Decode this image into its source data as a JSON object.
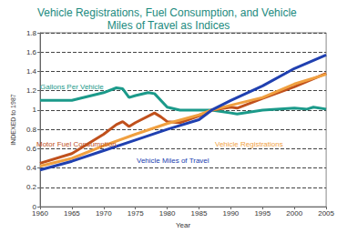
{
  "chart_data": {
    "type": "line",
    "title": "Vehicle Registrations, Fuel Consumption, and Vehicle Miles of Travel as Indices",
    "xlabel": "Year",
    "ylabel": "INDEXED to 1987",
    "series": [
      {
        "name": "Gallons Per Vehicle",
        "color": "#1b9a8a",
        "marker": "none",
        "line_style": "solid",
        "x": [
          1960,
          1965,
          1970,
          1972,
          1973,
          1974,
          1975,
          1977,
          1978,
          1980,
          1982,
          1985,
          1987,
          1990,
          1991,
          1995,
          2000,
          2002,
          2003,
          2005
        ],
        "values": [
          1.1,
          1.1,
          1.18,
          1.23,
          1.22,
          1.13,
          1.15,
          1.18,
          1.17,
          1.03,
          1.0,
          1.0,
          1.0,
          0.97,
          0.96,
          1.0,
          1.02,
          1.01,
          1.03,
          1.01
        ]
      },
      {
        "name": "Motor Fuel Consumption",
        "color": "#c0501c",
        "marker": "none",
        "line_style": "solid",
        "x": [
          1960,
          1965,
          1970,
          1972,
          1973,
          1974,
          1975,
          1978,
          1979,
          1980,
          1982,
          1985,
          1987,
          1990,
          1991,
          1995,
          2000,
          2005
        ],
        "values": [
          0.45,
          0.55,
          0.75,
          0.85,
          0.88,
          0.83,
          0.87,
          0.97,
          0.93,
          0.88,
          0.87,
          0.94,
          1.0,
          1.03,
          1.02,
          1.12,
          1.24,
          1.38
        ]
      },
      {
        "name": "Vehicle Registrations",
        "color": "#f0a040",
        "marker": "none",
        "line_style": "solid",
        "x": [
          1960,
          1965,
          1970,
          1975,
          1980,
          1985,
          1987,
          1990,
          1995,
          2000,
          2005
        ],
        "values": [
          0.42,
          0.5,
          0.63,
          0.75,
          0.86,
          0.95,
          1.0,
          1.05,
          1.13,
          1.27,
          1.37
        ]
      },
      {
        "name": "Vehicle Miles of Travel",
        "color": "#2040b0",
        "marker": "none",
        "line_style": "solid",
        "x": [
          1960,
          1965,
          1970,
          1975,
          1980,
          1985,
          1987,
          1990,
          1995,
          2000,
          2005
        ],
        "values": [
          0.38,
          0.47,
          0.58,
          0.69,
          0.8,
          0.9,
          1.0,
          1.1,
          1.25,
          1.43,
          1.57
        ]
      }
    ],
    "xlim": [
      1960,
      2005
    ],
    "xticks": [
      1960,
      1965,
      1970,
      1975,
      1980,
      1985,
      1990,
      1995,
      2000,
      2005
    ],
    "ylim": [
      0,
      1.8
    ],
    "yticks": [
      0,
      0.2,
      0.4,
      0.6,
      0.8,
      1,
      1.2,
      1.4,
      1.6,
      1.8
    ],
    "grid": true
  }
}
